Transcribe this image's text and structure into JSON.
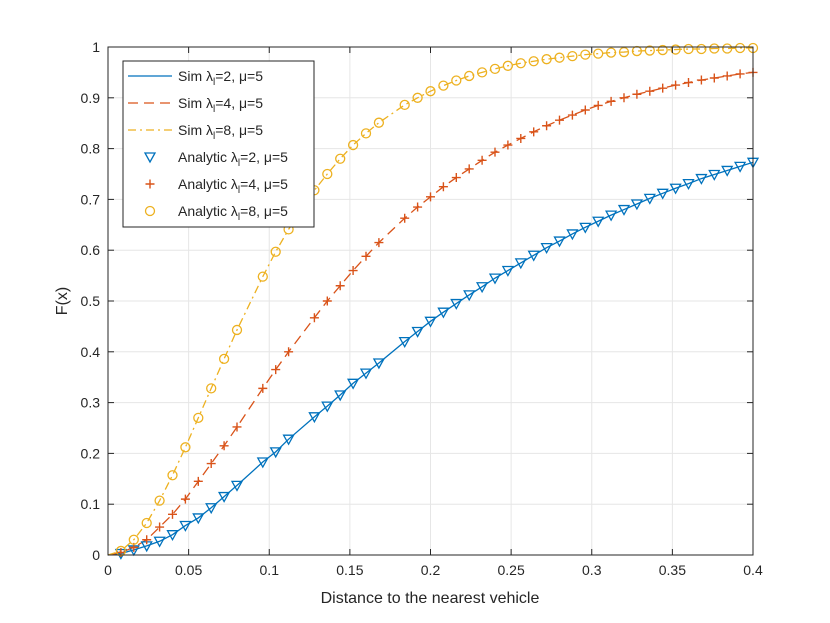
{
  "chart_data": {
    "type": "line",
    "title": "",
    "xlabel": "Distance to the nearest vehicle",
    "ylabel": "F(x)",
    "xlim": [
      0,
      0.4
    ],
    "ylim": [
      0,
      1
    ],
    "xticks": [
      "0",
      "0.05",
      "0.1",
      "0.15",
      "0.2",
      "0.25",
      "0.3",
      "0.35",
      "0.4"
    ],
    "yticks": [
      "0",
      "0.1",
      "0.2",
      "0.3",
      "0.4",
      "0.5",
      "0.6",
      "0.7",
      "0.8",
      "0.9",
      "1"
    ],
    "grid": true,
    "legend_position": "top-left",
    "x": [
      0.008,
      0.016,
      0.024,
      0.032,
      0.04,
      0.048,
      0.056,
      0.064,
      0.072,
      0.08,
      0.096,
      0.104,
      0.112,
      0.128,
      0.136,
      0.144,
      0.152,
      0.16,
      0.168,
      0.184,
      0.192,
      0.2,
      0.208,
      0.216,
      0.224,
      0.232,
      0.24,
      0.248,
      0.256,
      0.264,
      0.272,
      0.28,
      0.288,
      0.296,
      0.304,
      0.312,
      0.32,
      0.328,
      0.336,
      0.344,
      0.352,
      0.36,
      0.368,
      0.376,
      0.384,
      0.392,
      0.4
    ],
    "series": [
      {
        "name": "Sim λ_l=2, μ=5",
        "label_main": "Sim λ",
        "sub": "l",
        "label_rest": "=2, μ=5",
        "kind": "line",
        "dash": "solid",
        "color": "#0072BD",
        "values": [
          0.003,
          0.01,
          0.018,
          0.027,
          0.04,
          0.058,
          0.073,
          0.093,
          0.115,
          0.137,
          0.183,
          0.203,
          0.228,
          0.272,
          0.293,
          0.315,
          0.338,
          0.358,
          0.378,
          0.42,
          0.44,
          0.46,
          0.478,
          0.495,
          0.512,
          0.528,
          0.545,
          0.56,
          0.575,
          0.59,
          0.605,
          0.618,
          0.632,
          0.645,
          0.657,
          0.669,
          0.68,
          0.691,
          0.702,
          0.712,
          0.722,
          0.731,
          0.741,
          0.749,
          0.757,
          0.765,
          0.773
        ]
      },
      {
        "name": "Sim λ_l=4, μ=5",
        "label_main": "Sim λ",
        "sub": "l",
        "label_rest": "=4, μ=5",
        "kind": "line",
        "dash": "dashed",
        "color": "#D95319",
        "values": [
          0.005,
          0.015,
          0.03,
          0.055,
          0.08,
          0.11,
          0.145,
          0.18,
          0.215,
          0.252,
          0.328,
          0.365,
          0.4,
          0.467,
          0.5,
          0.53,
          0.56,
          0.588,
          0.615,
          0.663,
          0.685,
          0.705,
          0.725,
          0.743,
          0.76,
          0.777,
          0.793,
          0.807,
          0.82,
          0.833,
          0.845,
          0.856,
          0.866,
          0.876,
          0.885,
          0.893,
          0.9,
          0.907,
          0.913,
          0.919,
          0.925,
          0.93,
          0.935,
          0.939,
          0.943,
          0.947,
          0.95
        ]
      },
      {
        "name": "Sim λ_l=8, μ=5",
        "label_main": "Sim λ",
        "sub": "l",
        "label_rest": "=8, μ=5",
        "kind": "line",
        "dash": "dashdot",
        "color": "#EDB120",
        "values": [
          0.008,
          0.03,
          0.063,
          0.107,
          0.157,
          0.212,
          0.27,
          0.328,
          0.386,
          0.443,
          0.548,
          0.597,
          0.641,
          0.718,
          0.75,
          0.78,
          0.807,
          0.83,
          0.851,
          0.886,
          0.9,
          0.913,
          0.924,
          0.934,
          0.943,
          0.95,
          0.957,
          0.963,
          0.968,
          0.972,
          0.976,
          0.979,
          0.982,
          0.985,
          0.987,
          0.989,
          0.99,
          0.992,
          0.993,
          0.994,
          0.995,
          0.996,
          0.996,
          0.997,
          0.997,
          0.998,
          0.998
        ]
      },
      {
        "name": "Analytic λ_l=2, μ=5",
        "label_main": "Analytic λ",
        "sub": "l",
        "label_rest": "=2, μ=5",
        "kind": "marker",
        "marker": "triangle-down",
        "color": "#0072BD",
        "values": [
          0.003,
          0.01,
          0.018,
          0.027,
          0.04,
          0.058,
          0.073,
          0.093,
          0.115,
          0.137,
          0.183,
          0.203,
          0.228,
          0.272,
          0.293,
          0.315,
          0.338,
          0.358,
          0.378,
          0.42,
          0.44,
          0.46,
          0.478,
          0.495,
          0.512,
          0.528,
          0.545,
          0.56,
          0.575,
          0.59,
          0.605,
          0.618,
          0.632,
          0.645,
          0.657,
          0.669,
          0.68,
          0.691,
          0.702,
          0.712,
          0.722,
          0.731,
          0.741,
          0.749,
          0.757,
          0.765,
          0.773
        ]
      },
      {
        "name": "Analytic λ_l=4, μ=5",
        "label_main": "Analytic λ",
        "sub": "l",
        "label_rest": "=4, μ=5",
        "kind": "marker",
        "marker": "plus",
        "color": "#D95319",
        "values": [
          0.005,
          0.015,
          0.03,
          0.055,
          0.08,
          0.11,
          0.145,
          0.18,
          0.215,
          0.252,
          0.328,
          0.365,
          0.4,
          0.467,
          0.5,
          0.53,
          0.56,
          0.588,
          0.615,
          0.663,
          0.685,
          0.705,
          0.725,
          0.743,
          0.76,
          0.777,
          0.793,
          0.807,
          0.82,
          0.833,
          0.845,
          0.856,
          0.866,
          0.876,
          0.885,
          0.893,
          0.9,
          0.907,
          0.913,
          0.919,
          0.925,
          0.93,
          0.935,
          0.939,
          0.943,
          0.947,
          0.95
        ]
      },
      {
        "name": "Analytic λ_l=8, μ=5",
        "label_main": "Analytic λ",
        "sub": "l",
        "label_rest": "=8, μ=5",
        "kind": "marker",
        "marker": "circle",
        "color": "#EDB120",
        "values": [
          0.008,
          0.03,
          0.063,
          0.107,
          0.157,
          0.212,
          0.27,
          0.328,
          0.386,
          0.443,
          0.548,
          0.597,
          0.641,
          0.718,
          0.75,
          0.78,
          0.807,
          0.83,
          0.851,
          0.886,
          0.9,
          0.913,
          0.924,
          0.934,
          0.943,
          0.95,
          0.957,
          0.963,
          0.968,
          0.972,
          0.976,
          0.979,
          0.982,
          0.985,
          0.987,
          0.989,
          0.99,
          0.992,
          0.993,
          0.994,
          0.995,
          0.996,
          0.996,
          0.997,
          0.997,
          0.998,
          0.998
        ]
      }
    ]
  }
}
